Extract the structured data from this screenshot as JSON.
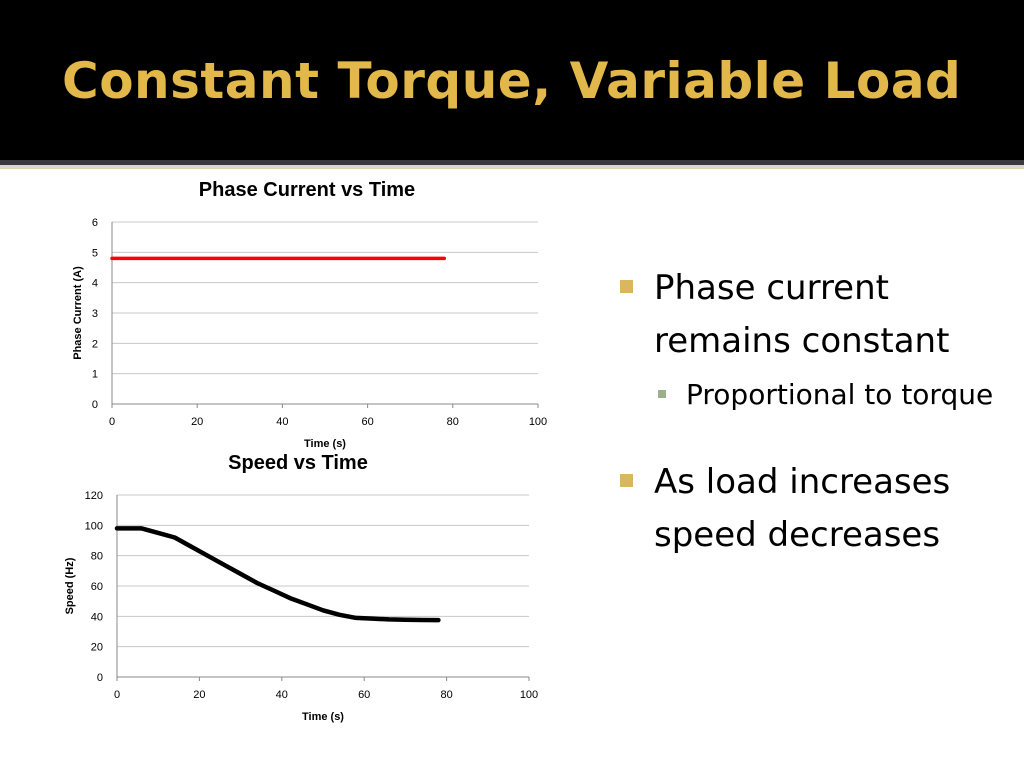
{
  "slide": {
    "title": "Constant Torque, Variable Load",
    "bullets": [
      {
        "text": "Phase current remains constant",
        "sub": [
          "Proportional to torque"
        ]
      },
      {
        "text": "As load increases speed decreases",
        "sub": []
      }
    ]
  },
  "colors": {
    "title": "#e3b84a",
    "current_line": "#ff0000",
    "speed_line": "#000000",
    "bullet": "#d8b75e",
    "sub_bullet": "#9bb08c"
  },
  "chart_data": [
    {
      "type": "line",
      "title": "Phase Current vs Time",
      "xlabel": "Time (s)",
      "ylabel": "Phase Current (A)",
      "xlim": [
        0,
        100
      ],
      "ylim": [
        0,
        6
      ],
      "xticks": [
        "0",
        "20",
        "40",
        "60",
        "80",
        "100"
      ],
      "yticks": [
        "0",
        "1",
        "2",
        "3",
        "4",
        "5",
        "6"
      ],
      "grid": true,
      "series": [
        {
          "color": "#ff0000",
          "x": [
            0,
            78
          ],
          "y": [
            4.8,
            4.8
          ]
        }
      ]
    },
    {
      "type": "line",
      "title": "Speed vs Time",
      "xlabel": "Time (s)",
      "ylabel": "Speed (Hz)",
      "xlim": [
        0,
        100
      ],
      "ylim": [
        0,
        120
      ],
      "xticks": [
        "0",
        "20",
        "40",
        "60",
        "80",
        "100"
      ],
      "yticks": [
        "0",
        "20",
        "40",
        "60",
        "80",
        "100",
        "120"
      ],
      "grid": true,
      "series": [
        {
          "color": "#000000",
          "x": [
            0,
            6,
            10,
            14,
            18,
            22,
            26,
            30,
            34,
            38,
            42,
            46,
            50,
            54,
            58,
            62,
            66,
            70,
            74,
            78
          ],
          "y": [
            98,
            98,
            95,
            92,
            86,
            80,
            74,
            68,
            62,
            57,
            52,
            48,
            44,
            41,
            39,
            38.5,
            38,
            37.8,
            37.6,
            37.5
          ]
        }
      ]
    }
  ]
}
